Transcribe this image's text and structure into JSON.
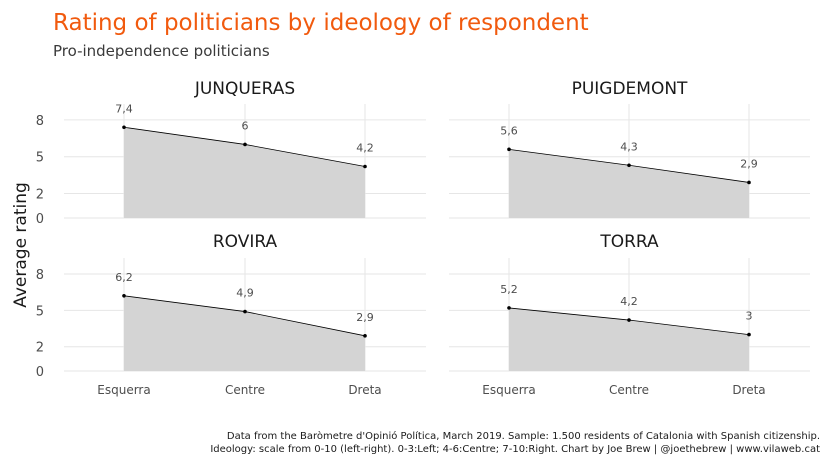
{
  "title": "Rating of politicians by ideology of respondent",
  "subtitle": "Pro-independence politicians",
  "title_color": "#f15a0e",
  "caption_line1": "Data from the Baròmetre d'Opinió Política, March 2019. Sample: 1.500 residents of Catalonia with Spanish citizenship.",
  "caption_line2": "Ideology: scale from 0-10 (left-right). 0-3:Left; 4-6:Centre; 7-10:Right. Chart by Joe Brew | @joethebrew | www.vilaweb.cat",
  "chart_data": {
    "type": "area",
    "ylabel": "Average rating",
    "xlabel": "",
    "categories": [
      "Esquerra",
      "Centre",
      "Dreta"
    ],
    "y_ticks": [
      "0",
      "2",
      "5",
      "8"
    ],
    "ylim": [
      0,
      8.4
    ],
    "fill_color": "#d4d4d4",
    "line_color": "#000000",
    "grid": true,
    "panels": [
      {
        "name": "JUNQUERAS",
        "values": [
          7.4,
          6.0,
          4.2
        ],
        "labels": [
          "7,4",
          "6",
          "4,2"
        ]
      },
      {
        "name": "PUIGDEMONT",
        "values": [
          5.6,
          4.3,
          2.9
        ],
        "labels": [
          "5,6",
          "4,3",
          "2,9"
        ]
      },
      {
        "name": "ROVIRA",
        "values": [
          6.2,
          4.9,
          2.9
        ],
        "labels": [
          "6,2",
          "4,9",
          "2,9"
        ]
      },
      {
        "name": "TORRA",
        "values": [
          5.2,
          4.2,
          3.0
        ],
        "labels": [
          "5,2",
          "4,2",
          "3"
        ]
      }
    ]
  }
}
